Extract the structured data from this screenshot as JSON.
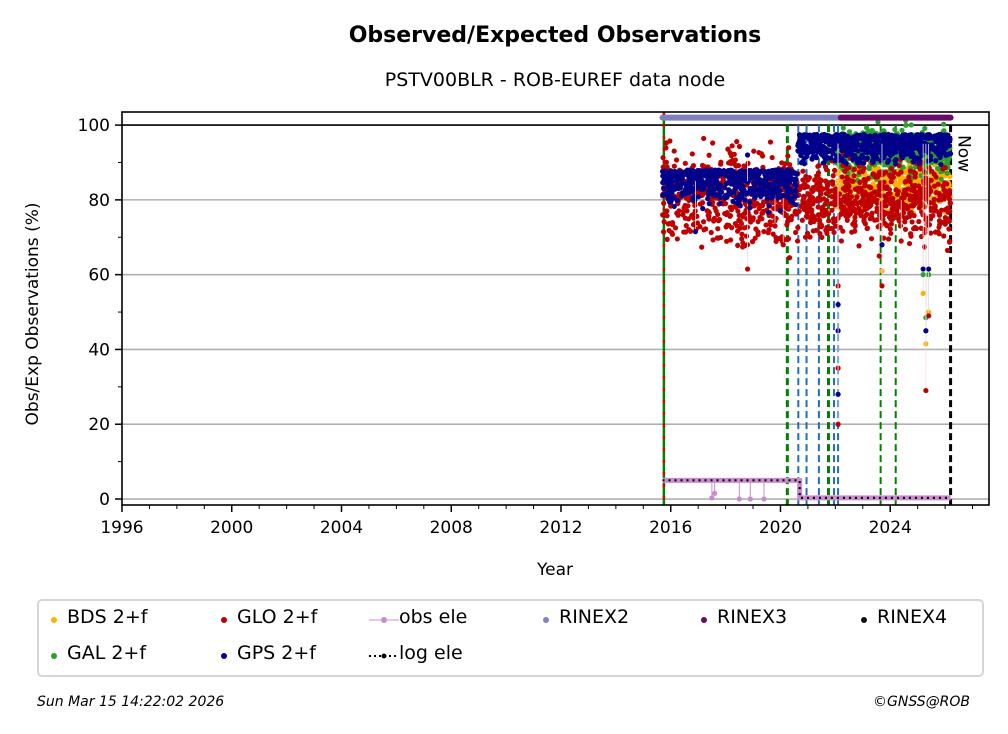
{
  "chart_data": {
    "type": "scatter",
    "title": "Observed/Expected Observations",
    "subtitle": "PSTV00BLR - ROB-EUREF data node",
    "xlabel": "Year",
    "ylabel": "Obs/Exp Observations (%)",
    "xlim": [
      1996,
      2027.6
    ],
    "ylim": [
      -1.6,
      103.5
    ],
    "grid": "horizontal",
    "x_ticks": [
      "1996",
      "2000",
      "2004",
      "2008",
      "2012",
      "2016",
      "2020",
      "2024"
    ],
    "x_tick_values": [
      1996,
      2000,
      2004,
      2008,
      2012,
      2016,
      2020,
      2024
    ],
    "y_ticks": [
      "0",
      "20",
      "40",
      "60",
      "80",
      "100"
    ],
    "y_tick_values": [
      0,
      20,
      40,
      60,
      80,
      100
    ],
    "now_label": "Now",
    "now_year": 2026.2,
    "reference_line_y": 100,
    "series": [
      {
        "name": "GLO 2+f",
        "color": "#c00000",
        "segments": [
          {
            "start": 2015.7,
            "end": 2020.6,
            "center": 81,
            "spread": 6,
            "outliers": [
              [
                2018.8,
                61.5
              ],
              [
                2020.1,
                68
              ],
              [
                2019.8,
                73
              ]
            ]
          },
          {
            "start": 2020.6,
            "end": 2026.2,
            "center": 80,
            "spread": 5,
            "outliers": [
              [
                2022.1,
                35
              ],
              [
                2022.1,
                20
              ],
              [
                2022.1,
                57
              ],
              [
                2023.7,
                57
              ],
              [
                2023.6,
                65
              ],
              [
                2025.3,
                29
              ],
              [
                2025.4,
                49
              ],
              [
                2024.4,
                69
              ]
            ]
          }
        ]
      },
      {
        "name": "GPS 2+f",
        "color": "#00008b",
        "segments": [
          {
            "start": 2015.7,
            "end": 2020.6,
            "center": 85,
            "spread": 3,
            "outliers": [
              [
                2018.8,
                92
              ],
              [
                2016.9,
                71.5
              ]
            ]
          },
          {
            "start": 2020.6,
            "end": 2026.2,
            "center": 95,
            "spread": 2.5,
            "outliers": [
              [
                2022.1,
                45
              ],
              [
                2022.1,
                28
              ],
              [
                2022.1,
                52
              ],
              [
                2023.7,
                68
              ],
              [
                2025.2,
                61.5
              ],
              [
                2025.4,
                61.5
              ],
              [
                2025.3,
                45
              ]
            ]
          }
        ]
      },
      {
        "name": "GAL 2+f",
        "color": "#2ca02c",
        "segments": [
          {
            "start": 2022.0,
            "end": 2026.2,
            "center": 93,
            "spread": 3,
            "outliers": [
              [
                2025.2,
                60
              ],
              [
                2025.4,
                60
              ],
              [
                2025.3,
                48.5
              ]
            ]
          }
        ]
      },
      {
        "name": "BDS 2+f",
        "color": "#ffb000",
        "segments": [
          {
            "start": 2022.0,
            "end": 2026.2,
            "center": 84,
            "spread": 3,
            "outliers": [
              [
                2023.7,
                61
              ],
              [
                2023.6,
                65
              ],
              [
                2025.2,
                55
              ],
              [
                2025.3,
                41.5
              ],
              [
                2025.4,
                50
              ]
            ]
          }
        ]
      },
      {
        "name": "obs ele",
        "color": "#c88ccc",
        "steps": [
          [
            2015.7,
            5
          ],
          [
            2020.7,
            5
          ],
          [
            2020.7,
            0.3
          ],
          [
            2026.2,
            0.3
          ]
        ],
        "drops": [
          [
            2017.5,
            0.3
          ],
          [
            2017.6,
            1.5
          ],
          [
            2018.5,
            0
          ],
          [
            2018.9,
            0
          ],
          [
            2019.4,
            0
          ]
        ]
      },
      {
        "name": "log ele",
        "color": "#000000",
        "steps": [
          [
            2015.7,
            5
          ],
          [
            2020.7,
            5
          ],
          [
            2020.7,
            0.3
          ],
          [
            2026.2,
            0.3
          ]
        ]
      },
      {
        "name": "RINEX2",
        "color": "#8080c0",
        "range": [
          2015.7,
          2022.2
        ],
        "y": 102
      },
      {
        "name": "RINEX3",
        "color": "#6a0a6a",
        "range": [
          2022.2,
          2026.2
        ],
        "y": 102
      }
    ],
    "event_lines": [
      {
        "year": 2015.75,
        "color": "#008000",
        "style": "dash-red-green"
      },
      {
        "year": 2020.25,
        "color": "#008000",
        "style": "dashed-thick"
      },
      {
        "year": 2020.65,
        "color": "#1f6fbf",
        "style": "dashed"
      },
      {
        "year": 2020.95,
        "color": "#1f6fbf",
        "style": "dashed"
      },
      {
        "year": 2021.4,
        "color": "#1f6fbf",
        "style": "dashed"
      },
      {
        "year": 2021.75,
        "color": "#008000",
        "style": "dashed-thick"
      },
      {
        "year": 2021.95,
        "color": "#1f6fbf",
        "style": "dashed"
      },
      {
        "year": 2022.1,
        "color": "#1f6fbf",
        "style": "dashed"
      },
      {
        "year": 2023.65,
        "color": "#008000",
        "style": "dashed"
      },
      {
        "year": 2024.2,
        "color": "#008000",
        "style": "dashed"
      },
      {
        "year": 2026.2,
        "color": "#000000",
        "style": "dashed-thick"
      }
    ],
    "legend": {
      "placement": "bottom",
      "entries": [
        {
          "label": "BDS 2+f",
          "color": "#ffb000",
          "marker": "dot"
        },
        {
          "label": "GLO 2+f",
          "color": "#c00000",
          "marker": "dot"
        },
        {
          "label": "obs ele",
          "color": "#c88ccc",
          "marker": "line-dot"
        },
        {
          "label": "RINEX2",
          "color": "#8080c0",
          "marker": "dot"
        },
        {
          "label": "RINEX3",
          "color": "#6a0a6a",
          "marker": "dot"
        },
        {
          "label": "RINEX4",
          "color": "#1a0a1a",
          "marker": "dot"
        },
        {
          "label": "GAL 2+f",
          "color": "#2ca02c",
          "marker": "dot"
        },
        {
          "label": "GPS 2+f",
          "color": "#00008b",
          "marker": "dot"
        },
        {
          "label": "log ele",
          "color": "#000000",
          "marker": "dotted-line"
        }
      ]
    }
  },
  "footer": {
    "timestamp": "Sun Mar 15 14:22:02 2026",
    "credit": "©GNSS@ROB"
  }
}
